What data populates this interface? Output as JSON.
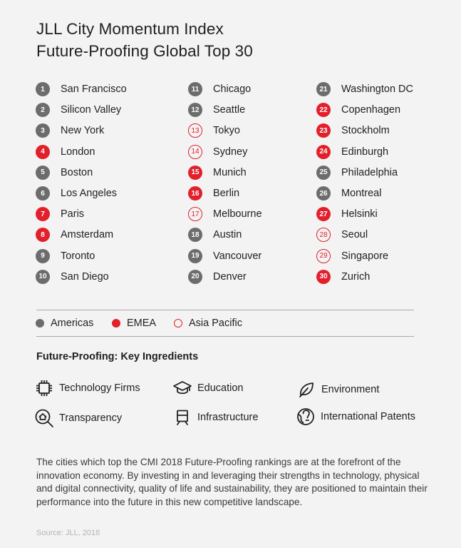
{
  "title": {
    "line1": "JLL City Momentum Index",
    "line2": "Future-Proofing Global Top 30"
  },
  "region_colors": {
    "americas": "#6c6c6c",
    "emea": "#e2202c",
    "asia_pacific": "#e2202c"
  },
  "rankings": [
    {
      "rank": "1",
      "city": "San Francisco",
      "region": "americas"
    },
    {
      "rank": "2",
      "city": "Silicon Valley",
      "region": "americas"
    },
    {
      "rank": "3",
      "city": "New York",
      "region": "americas"
    },
    {
      "rank": "4",
      "city": "London",
      "region": "emea"
    },
    {
      "rank": "5",
      "city": "Boston",
      "region": "americas"
    },
    {
      "rank": "6",
      "city": "Los Angeles",
      "region": "americas"
    },
    {
      "rank": "7",
      "city": "Paris",
      "region": "emea"
    },
    {
      "rank": "8",
      "city": "Amsterdam",
      "region": "emea"
    },
    {
      "rank": "9",
      "city": "Toronto",
      "region": "americas"
    },
    {
      "rank": "10",
      "city": "San Diego",
      "region": "americas"
    },
    {
      "rank": "11",
      "city": "Chicago",
      "region": "americas"
    },
    {
      "rank": "12",
      "city": "Seattle",
      "region": "americas"
    },
    {
      "rank": "13",
      "city": "Tokyo",
      "region": "apac"
    },
    {
      "rank": "14",
      "city": "Sydney",
      "region": "apac"
    },
    {
      "rank": "15",
      "city": "Munich",
      "region": "emea"
    },
    {
      "rank": "16",
      "city": "Berlin",
      "region": "emea"
    },
    {
      "rank": "17",
      "city": "Melbourne",
      "region": "apac"
    },
    {
      "rank": "18",
      "city": "Austin",
      "region": "americas"
    },
    {
      "rank": "19",
      "city": "Vancouver",
      "region": "americas"
    },
    {
      "rank": "20",
      "city": "Denver",
      "region": "americas"
    },
    {
      "rank": "21",
      "city": "Washington DC",
      "region": "americas"
    },
    {
      "rank": "22",
      "city": "Copenhagen",
      "region": "emea"
    },
    {
      "rank": "23",
      "city": "Stockholm",
      "region": "emea"
    },
    {
      "rank": "24",
      "city": "Edinburgh",
      "region": "emea"
    },
    {
      "rank": "25",
      "city": "Philadelphia",
      "region": "americas"
    },
    {
      "rank": "26",
      "city": "Montreal",
      "region": "americas"
    },
    {
      "rank": "27",
      "city": "Helsinki",
      "region": "emea"
    },
    {
      "rank": "28",
      "city": "Seoul",
      "region": "apac"
    },
    {
      "rank": "29",
      "city": "Singapore",
      "region": "apac"
    },
    {
      "rank": "30",
      "city": "Zurich",
      "region": "emea"
    }
  ],
  "legend": {
    "americas": "Americas",
    "emea": "EMEA",
    "apac": "Asia Pacific"
  },
  "ingredients": {
    "heading": "Future-Proofing: Key Ingredients",
    "items": [
      {
        "label": "Technology Firms",
        "icon": "microchip-icon"
      },
      {
        "label": "Education",
        "icon": "graduation-cap-icon"
      },
      {
        "label": "Environment",
        "icon": "leaf-icon"
      },
      {
        "label": "Transparency",
        "icon": "magnifier-house-icon"
      },
      {
        "label": "Infrastructure",
        "icon": "train-icon"
      },
      {
        "label": "International Patents",
        "icon": "lightbulb-globe-icon"
      }
    ]
  },
  "description": "The cities which top the CMI 2018 Future-Proofing rankings are at the forefront of the innovation economy. By investing in and leveraging their strengths in technology, physical and digital connectivity, quality of life and sustainability, they are positioned to maintain their performance into the future in this new competitive landscape.",
  "source": "Source: JLL, 2018"
}
